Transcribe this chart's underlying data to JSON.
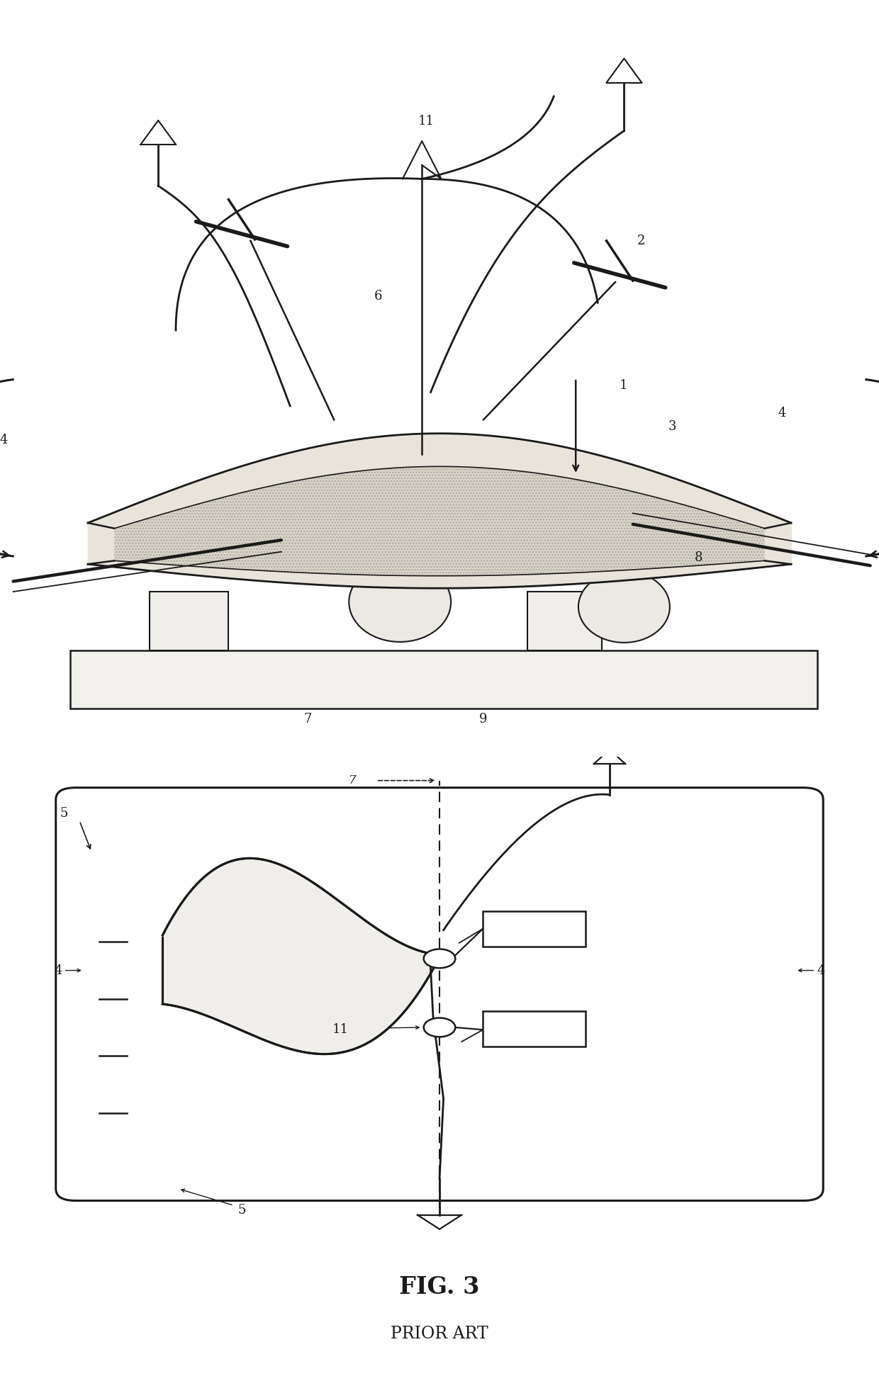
{
  "bg_color": "#ffffff",
  "line_color": "#1a1a1a",
  "fig_label": "FIG. 3",
  "fig_sublabel": "PRIOR ART"
}
